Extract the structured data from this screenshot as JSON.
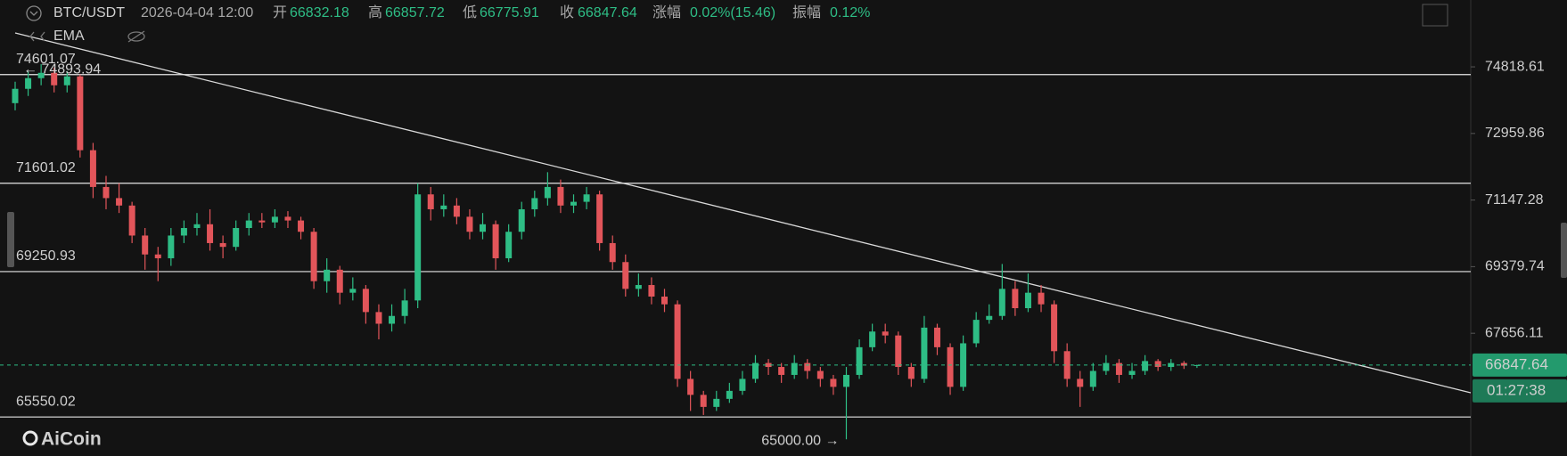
{
  "chart_data": {
    "type": "candlestick",
    "symbol": "BTC/USDT",
    "time": "2026-04-04 12:00",
    "field_labels": [
      "开",
      "高",
      "低",
      "收"
    ],
    "change_label": "涨幅",
    "change": "0.02%(15.46)",
    "amplitude_label": "振幅",
    "amplitude": "0.12%",
    "indicator": "EMA",
    "ohlc": [
      [
        73800,
        74400,
        73600,
        74200
      ],
      [
        74200,
        74700,
        74000,
        74500
      ],
      [
        74500,
        74893.94,
        74300,
        74650
      ],
      [
        74650,
        74800,
        74100,
        74300
      ],
      [
        74300,
        74700,
        74100,
        74550
      ],
      [
        74550,
        74600,
        72300,
        72500
      ],
      [
        72500,
        72700,
        71200,
        71500
      ],
      [
        71500,
        71800,
        70900,
        71200
      ],
      [
        71200,
        71600,
        70800,
        71000
      ],
      [
        71000,
        71100,
        70000,
        70200
      ],
      [
        70200,
        70400,
        69300,
        69700
      ],
      [
        69700,
        69900,
        69000,
        69600
      ],
      [
        69600,
        70400,
        69400,
        70200
      ],
      [
        70200,
        70600,
        70000,
        70400
      ],
      [
        70400,
        70800,
        70200,
        70500
      ],
      [
        70500,
        70900,
        69800,
        70000
      ],
      [
        70000,
        70200,
        69600,
        69900
      ],
      [
        69900,
        70600,
        69800,
        70400
      ],
      [
        70400,
        70800,
        70200,
        70600
      ],
      [
        70600,
        70800,
        70400,
        70550
      ],
      [
        70550,
        70900,
        70400,
        70700
      ],
      [
        70700,
        70850,
        70400,
        70600
      ],
      [
        70600,
        70700,
        70100,
        70300
      ],
      [
        70300,
        70400,
        68800,
        69000
      ],
      [
        69000,
        69600,
        68700,
        69300
      ],
      [
        69300,
        69400,
        68400,
        68700
      ],
      [
        68700,
        69100,
        68500,
        68800
      ],
      [
        68800,
        68900,
        67900,
        68200
      ],
      [
        68200,
        68400,
        67500,
        67900
      ],
      [
        67900,
        68400,
        67700,
        68100
      ],
      [
        68100,
        68800,
        67900,
        68500
      ],
      [
        68500,
        71600,
        68300,
        71300
      ],
      [
        71300,
        71500,
        70600,
        70900
      ],
      [
        70900,
        71300,
        70700,
        71000
      ],
      [
        71000,
        71200,
        70500,
        70700
      ],
      [
        70700,
        70900,
        70100,
        70300
      ],
      [
        70300,
        70800,
        70100,
        70500
      ],
      [
        70500,
        70600,
        69300,
        69600
      ],
      [
        69600,
        70500,
        69500,
        70300
      ],
      [
        70300,
        71100,
        70100,
        70900
      ],
      [
        70900,
        71400,
        70700,
        71200
      ],
      [
        71200,
        71900,
        71000,
        71500
      ],
      [
        71500,
        71700,
        70800,
        71000
      ],
      [
        71000,
        71300,
        70800,
        71100
      ],
      [
        71100,
        71500,
        70900,
        71300
      ],
      [
        71300,
        71400,
        69800,
        70000
      ],
      [
        70000,
        70200,
        69300,
        69500
      ],
      [
        69500,
        69700,
        68600,
        68800
      ],
      [
        68800,
        69200,
        68600,
        68900
      ],
      [
        68900,
        69100,
        68400,
        68600
      ],
      [
        68600,
        68800,
        68200,
        68400
      ],
      [
        68400,
        68500,
        66300,
        66500
      ],
      [
        66500,
        66700,
        65700,
        66100
      ],
      [
        66100,
        66200,
        65600,
        65800
      ],
      [
        65800,
        66200,
        65700,
        66000
      ],
      [
        66000,
        66400,
        65900,
        66200
      ],
      [
        66200,
        66700,
        66100,
        66500
      ],
      [
        66500,
        67100,
        66400,
        66900
      ],
      [
        66900,
        67000,
        66600,
        66800
      ],
      [
        66800,
        66900,
        66400,
        66600
      ],
      [
        66600,
        67100,
        66500,
        66900
      ],
      [
        66900,
        67000,
        66500,
        66700
      ],
      [
        66700,
        66800,
        66300,
        66500
      ],
      [
        66500,
        66600,
        66100,
        66300
      ],
      [
        66300,
        66800,
        65000.0,
        66600
      ],
      [
        66600,
        67500,
        66500,
        67300
      ],
      [
        67300,
        67900,
        67200,
        67700
      ],
      [
        67700,
        67900,
        67400,
        67600
      ],
      [
        67600,
        67700,
        66600,
        66800
      ],
      [
        66800,
        66900,
        66300,
        66500
      ],
      [
        66500,
        68100,
        66400,
        67800
      ],
      [
        67800,
        67900,
        67100,
        67300
      ],
      [
        67300,
        67400,
        66100,
        66300
      ],
      [
        66300,
        67600,
        66200,
        67400
      ],
      [
        67400,
        68200,
        67300,
        68000
      ],
      [
        68000,
        68400,
        67900,
        68100
      ],
      [
        68100,
        69450,
        68000,
        68800
      ],
      [
        68800,
        69000,
        68100,
        68300
      ],
      [
        68300,
        69200,
        68200,
        68700
      ],
      [
        68700,
        68900,
        68200,
        68400
      ],
      [
        68400,
        68500,
        66900,
        67200
      ],
      [
        67200,
        67400,
        66300,
        66500
      ],
      [
        66500,
        66700,
        65800,
        66300
      ],
      [
        66300,
        66900,
        66200,
        66700
      ],
      [
        66700,
        67100,
        66600,
        66900
      ],
      [
        66900,
        67000,
        66400,
        66600
      ],
      [
        66600,
        66900,
        66500,
        66700
      ],
      [
        66700,
        67100,
        66600,
        66950
      ],
      [
        66950,
        67000,
        66700,
        66800
      ],
      [
        66800,
        67000,
        66700,
        66900
      ],
      [
        66900,
        66950,
        66750,
        66832.18
      ],
      [
        66832.18,
        66857.72,
        66775.91,
        66847.64
      ]
    ],
    "log_scale": true,
    "ylim": [
      64591,
      76732
    ],
    "yticks": [
      74818.61,
      72959.86,
      71147.28,
      69379.74,
      67656.11
    ],
    "levels": [
      74601.07,
      71601.02,
      69250.93,
      65550.02
    ],
    "high_marker": "← 74893.94",
    "low_marker": "65000.00 →",
    "countdown": "01:27:38",
    "brand": "AiCoin",
    "up_color": "#2ebd85",
    "down_color": "#e2555a"
  }
}
